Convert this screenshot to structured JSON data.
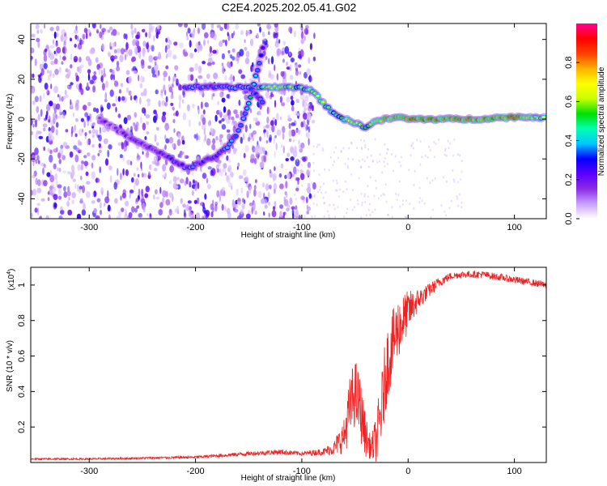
{
  "figure": {
    "title": "C2E4.2025.202.05.41.G02"
  },
  "chart_data": [
    {
      "type": "heatmap",
      "panel": "spectrogram",
      "xlabel": "Height of straight line (km)",
      "ylabel": "Frequency (Hz)",
      "xlim": [
        -355,
        130
      ],
      "ylim": [
        -50,
        48
      ],
      "x_ticks": [
        -300,
        -200,
        -100,
        0,
        100
      ],
      "y_ticks": [
        -40,
        -20,
        0,
        20,
        40
      ],
      "colorbar": {
        "label": "Normalized spectral amplitude",
        "range": [
          0.0,
          1.0
        ],
        "ticks": [
          "0.0",
          "0.2",
          "0.4",
          "0.6",
          "0.8"
        ],
        "colors": [
          "#ffffff",
          "#c8a0ff",
          "#8a2be2",
          "#5a00ff",
          "#0000ff",
          "#00c8ff",
          "#00ffb0",
          "#00e000",
          "#c8ff00",
          "#ffff00",
          "#ffb000",
          "#ff4000",
          "#ff0000",
          "#ff0090"
        ]
      },
      "noise_region": {
        "x_range": [
          -355,
          -88
        ],
        "amplitude_range": [
          0.05,
          0.3
        ]
      },
      "ridges": [
        {
          "name": "horizontal-line",
          "points": [
            [
              -210,
              16
            ],
            [
              -185,
              16
            ],
            [
              -160,
              16
            ],
            [
              -140,
              16
            ],
            [
              -120,
              16
            ],
            [
              -100,
              16
            ],
            [
              -90,
              14
            ],
            [
              -80,
              8
            ],
            [
              -70,
              3
            ],
            [
              -60,
              0
            ],
            [
              -50,
              -2
            ],
            [
              -40,
              -4
            ],
            [
              -30,
              -1
            ],
            [
              -20,
              0
            ],
            [
              -10,
              1
            ],
            [
              0,
              0
            ],
            [
              20,
              0
            ],
            [
              60,
              0
            ],
            [
              100,
              1
            ],
            [
              130,
              1
            ]
          ],
          "amplitudes": [
            0.35,
            0.35,
            0.4,
            0.55,
            0.7,
            0.55,
            0.6,
            0.65,
            0.5,
            0.6,
            0.7,
            0.55,
            0.75,
            0.8,
            0.75,
            0.85,
            0.85,
            0.8,
            0.85,
            0.6
          ]
        },
        {
          "name": "rising-line",
          "points": [
            [
              -210,
              -25
            ],
            [
              -195,
              -22
            ],
            [
              -180,
              -18
            ],
            [
              -170,
              -14
            ],
            [
              -162,
              -8
            ],
            [
              -155,
              0
            ],
            [
              -150,
              8
            ],
            [
              -145,
              18
            ],
            [
              -140,
              28
            ],
            [
              -135,
              40
            ]
          ],
          "amplitudes": [
            0.35,
            0.3,
            0.3,
            0.35,
            0.4,
            0.35,
            0.45,
            0.5,
            0.4,
            0.3
          ]
        },
        {
          "name": "falling-line",
          "points": [
            [
              -150,
              16
            ],
            [
              -143,
              12
            ],
            [
              -135,
              8
            ]
          ],
          "amplitudes": [
            0.35,
            0.3,
            0.3
          ]
        },
        {
          "name": "valley-line",
          "points": [
            [
              -290,
              0
            ],
            [
              -260,
              -10
            ],
            [
              -230,
              -18
            ],
            [
              -210,
              -24
            ]
          ],
          "amplitudes": [
            0.15,
            0.2,
            0.25,
            0.3
          ]
        }
      ]
    },
    {
      "type": "line",
      "panel": "snr",
      "xlabel": "Height of straight line (km)",
      "ylabel": "SNR (10 * v/v)",
      "y_multiplier_label": "(x10",
      "y_multiplier_exponent": "4",
      "y_multiplier_suffix": ")",
      "xlim": [
        -355,
        130
      ],
      "ylim": [
        0,
        1.1
      ],
      "x_ticks": [
        -300,
        -200,
        -100,
        0,
        100
      ],
      "y_ticks": [
        0.2,
        0.4,
        0.6,
        0.8,
        1
      ],
      "y_tick_labels": [
        "0.2",
        "0.4",
        "0.6",
        "0.8",
        "1"
      ],
      "color": "#ee2222",
      "series": [
        {
          "x": [
            -355,
            -300,
            -250,
            -200,
            -150,
            -120,
            -100,
            -80,
            -70,
            -60,
            -55,
            -50,
            -45,
            -40,
            -35,
            -30,
            -25,
            -20,
            -15,
            -10,
            -5,
            0,
            10,
            20,
            30,
            40,
            50,
            60,
            70,
            80,
            90,
            100,
            110,
            120,
            130
          ],
          "values": [
            0.02,
            0.02,
            0.025,
            0.03,
            0.05,
            0.06,
            0.05,
            0.06,
            0.08,
            0.15,
            0.3,
            0.4,
            0.3,
            0.15,
            0.08,
            0.12,
            0.3,
            0.55,
            0.65,
            0.75,
            0.8,
            0.85,
            0.92,
            0.97,
            1.02,
            1.05,
            1.06,
            1.06,
            1.06,
            1.05,
            1.04,
            1.03,
            1.02,
            1.01,
            1.0
          ],
          "noise": [
            0.005,
            0.006,
            0.006,
            0.008,
            0.012,
            0.015,
            0.012,
            0.02,
            0.04,
            0.1,
            0.18,
            0.2,
            0.18,
            0.12,
            0.06,
            0.15,
            0.2,
            0.22,
            0.2,
            0.18,
            0.15,
            0.12,
            0.06,
            0.04,
            0.03,
            0.02,
            0.02,
            0.02,
            0.02,
            0.02,
            0.02,
            0.02,
            0.02,
            0.02,
            0.02
          ]
        }
      ]
    }
  ]
}
